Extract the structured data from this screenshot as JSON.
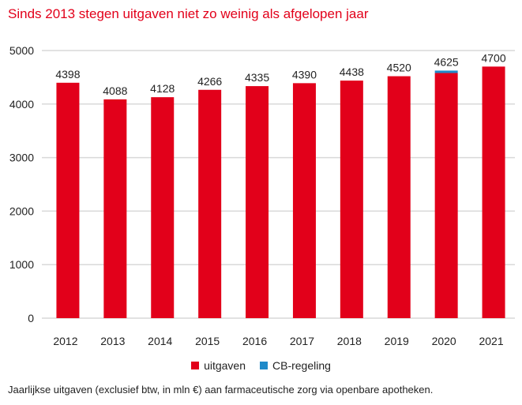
{
  "title": "Sinds 2013 stegen uitgaven niet zo weinig als afgelopen jaar",
  "caption": "Jaarlijkse uitgaven (exclusief btw, in mln €) aan farmaceutische zorg via openbare apotheken.",
  "colors": {
    "uitgaven": "#e2001a",
    "cb": "#1f8ac9",
    "title": "#e2001a",
    "grid": "#d9d9d9"
  },
  "chart_data": {
    "type": "bar",
    "stacked": true,
    "title": "Sinds 2013 stegen uitgaven niet zo weinig als afgelopen jaar",
    "xlabel": "",
    "ylabel": "",
    "categories": [
      "2012",
      "2013",
      "2014",
      "2015",
      "2016",
      "2017",
      "2018",
      "2019",
      "2020",
      "2021"
    ],
    "series": [
      {
        "name": "uitgaven",
        "values": [
          4398,
          4088,
          4128,
          4266,
          4335,
          4390,
          4438,
          4520,
          4580,
          4700
        ]
      },
      {
        "name": "CB-regeling",
        "values": [
          0,
          0,
          0,
          0,
          0,
          0,
          0,
          0,
          45,
          0
        ]
      }
    ],
    "data_labels": [
      "4398",
      "4088",
      "4128",
      "4266",
      "4335",
      "4390",
      "4438",
      "4520",
      "4625",
      "4700"
    ],
    "ylim": [
      0,
      5000
    ],
    "yticks": [
      "0",
      "1000",
      "2000",
      "3000",
      "4000",
      "5000"
    ],
    "grid": true,
    "legend": {
      "position": "bottom",
      "entries": [
        "uitgaven",
        "CB-regeling"
      ]
    }
  }
}
